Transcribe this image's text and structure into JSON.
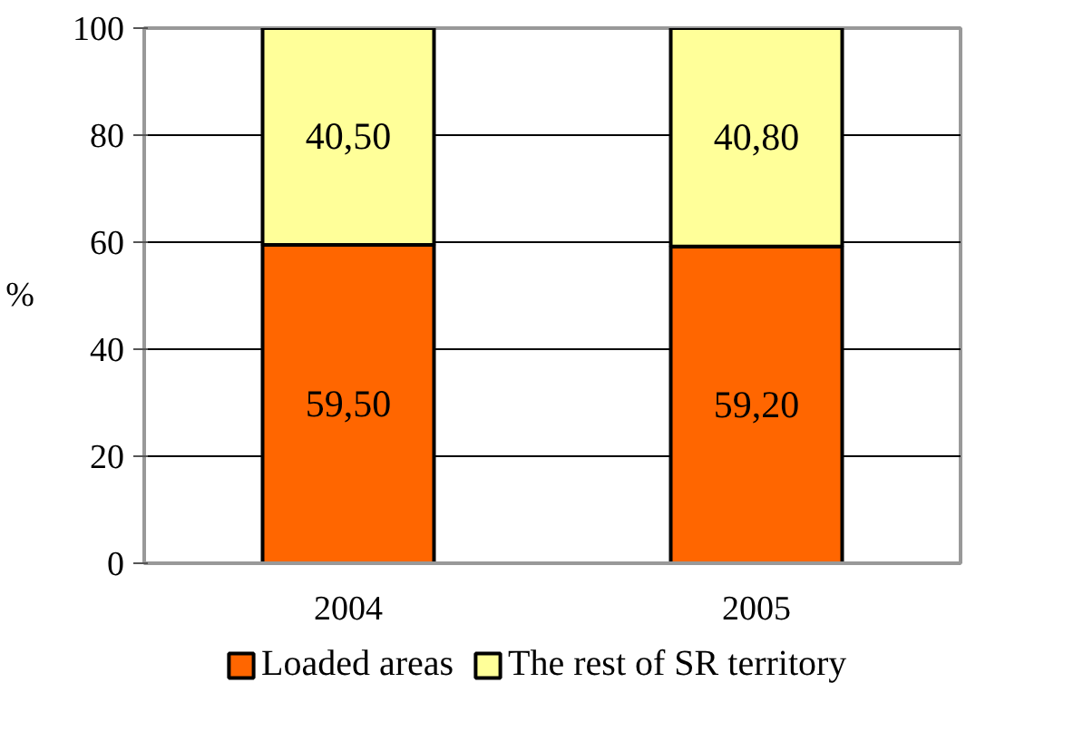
{
  "chart_data": {
    "type": "bar",
    "stacked": true,
    "ylabel": "%",
    "categories": [
      "2004",
      "2005"
    ],
    "series": [
      {
        "name": "Loaded areas",
        "color": "#ff6600",
        "values": [
          59.5,
          59.2
        ],
        "value_labels": [
          "59,50",
          "59,20"
        ]
      },
      {
        "name": "The rest of SR territory",
        "color": "#ffff99",
        "values": [
          40.5,
          40.8
        ],
        "value_labels": [
          "40,50",
          "40,80"
        ]
      }
    ],
    "ylim": [
      0,
      100
    ],
    "yticks": [
      0,
      20,
      40,
      60,
      80,
      100
    ],
    "grid": "y",
    "legend": "bottom"
  }
}
